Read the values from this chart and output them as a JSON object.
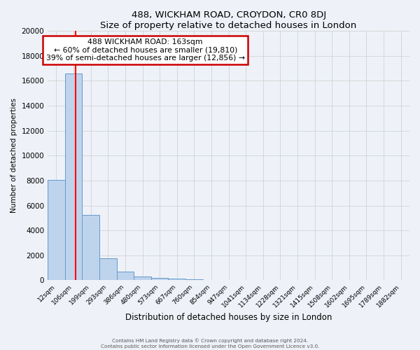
{
  "title": "488, WICKHAM ROAD, CROYDON, CR0 8DJ",
  "subtitle": "Size of property relative to detached houses in London",
  "xlabel": "Distribution of detached houses by size in London",
  "ylabel": "Number of detached properties",
  "bin_labels": [
    "12sqm",
    "106sqm",
    "199sqm",
    "293sqm",
    "386sqm",
    "480sqm",
    "573sqm",
    "667sqm",
    "760sqm",
    "854sqm",
    "947sqm",
    "1041sqm",
    "1134sqm",
    "1228sqm",
    "1321sqm",
    "1415sqm",
    "1508sqm",
    "1602sqm",
    "1695sqm",
    "1789sqm",
    "1882sqm"
  ],
  "bar_heights": [
    8050,
    16600,
    5250,
    1750,
    700,
    300,
    200,
    150,
    100,
    0,
    0,
    0,
    0,
    0,
    0,
    0,
    0,
    0,
    0,
    0,
    0
  ],
  "bar_color": "#bed3ec",
  "bar_edge_color": "#6699cc",
  "annotation_title": "488 WICKHAM ROAD: 163sqm",
  "annotation_line1": "← 60% of detached houses are smaller (19,810)",
  "annotation_line2": "39% of semi-detached houses are larger (12,856) →",
  "annotation_box_color": "#ffffff",
  "annotation_box_edge": "#cc0000",
  "ylim": [
    0,
    20000
  ],
  "yticks": [
    0,
    2000,
    4000,
    6000,
    8000,
    10000,
    12000,
    14000,
    16000,
    18000,
    20000
  ],
  "grid_color": "#cccccc",
  "bg_color": "#eef2f8",
  "footer1": "Contains HM Land Registry data © Crown copyright and database right 2024.",
  "footer2": "Contains public sector information licensed under the Open Government Licence v3.0."
}
